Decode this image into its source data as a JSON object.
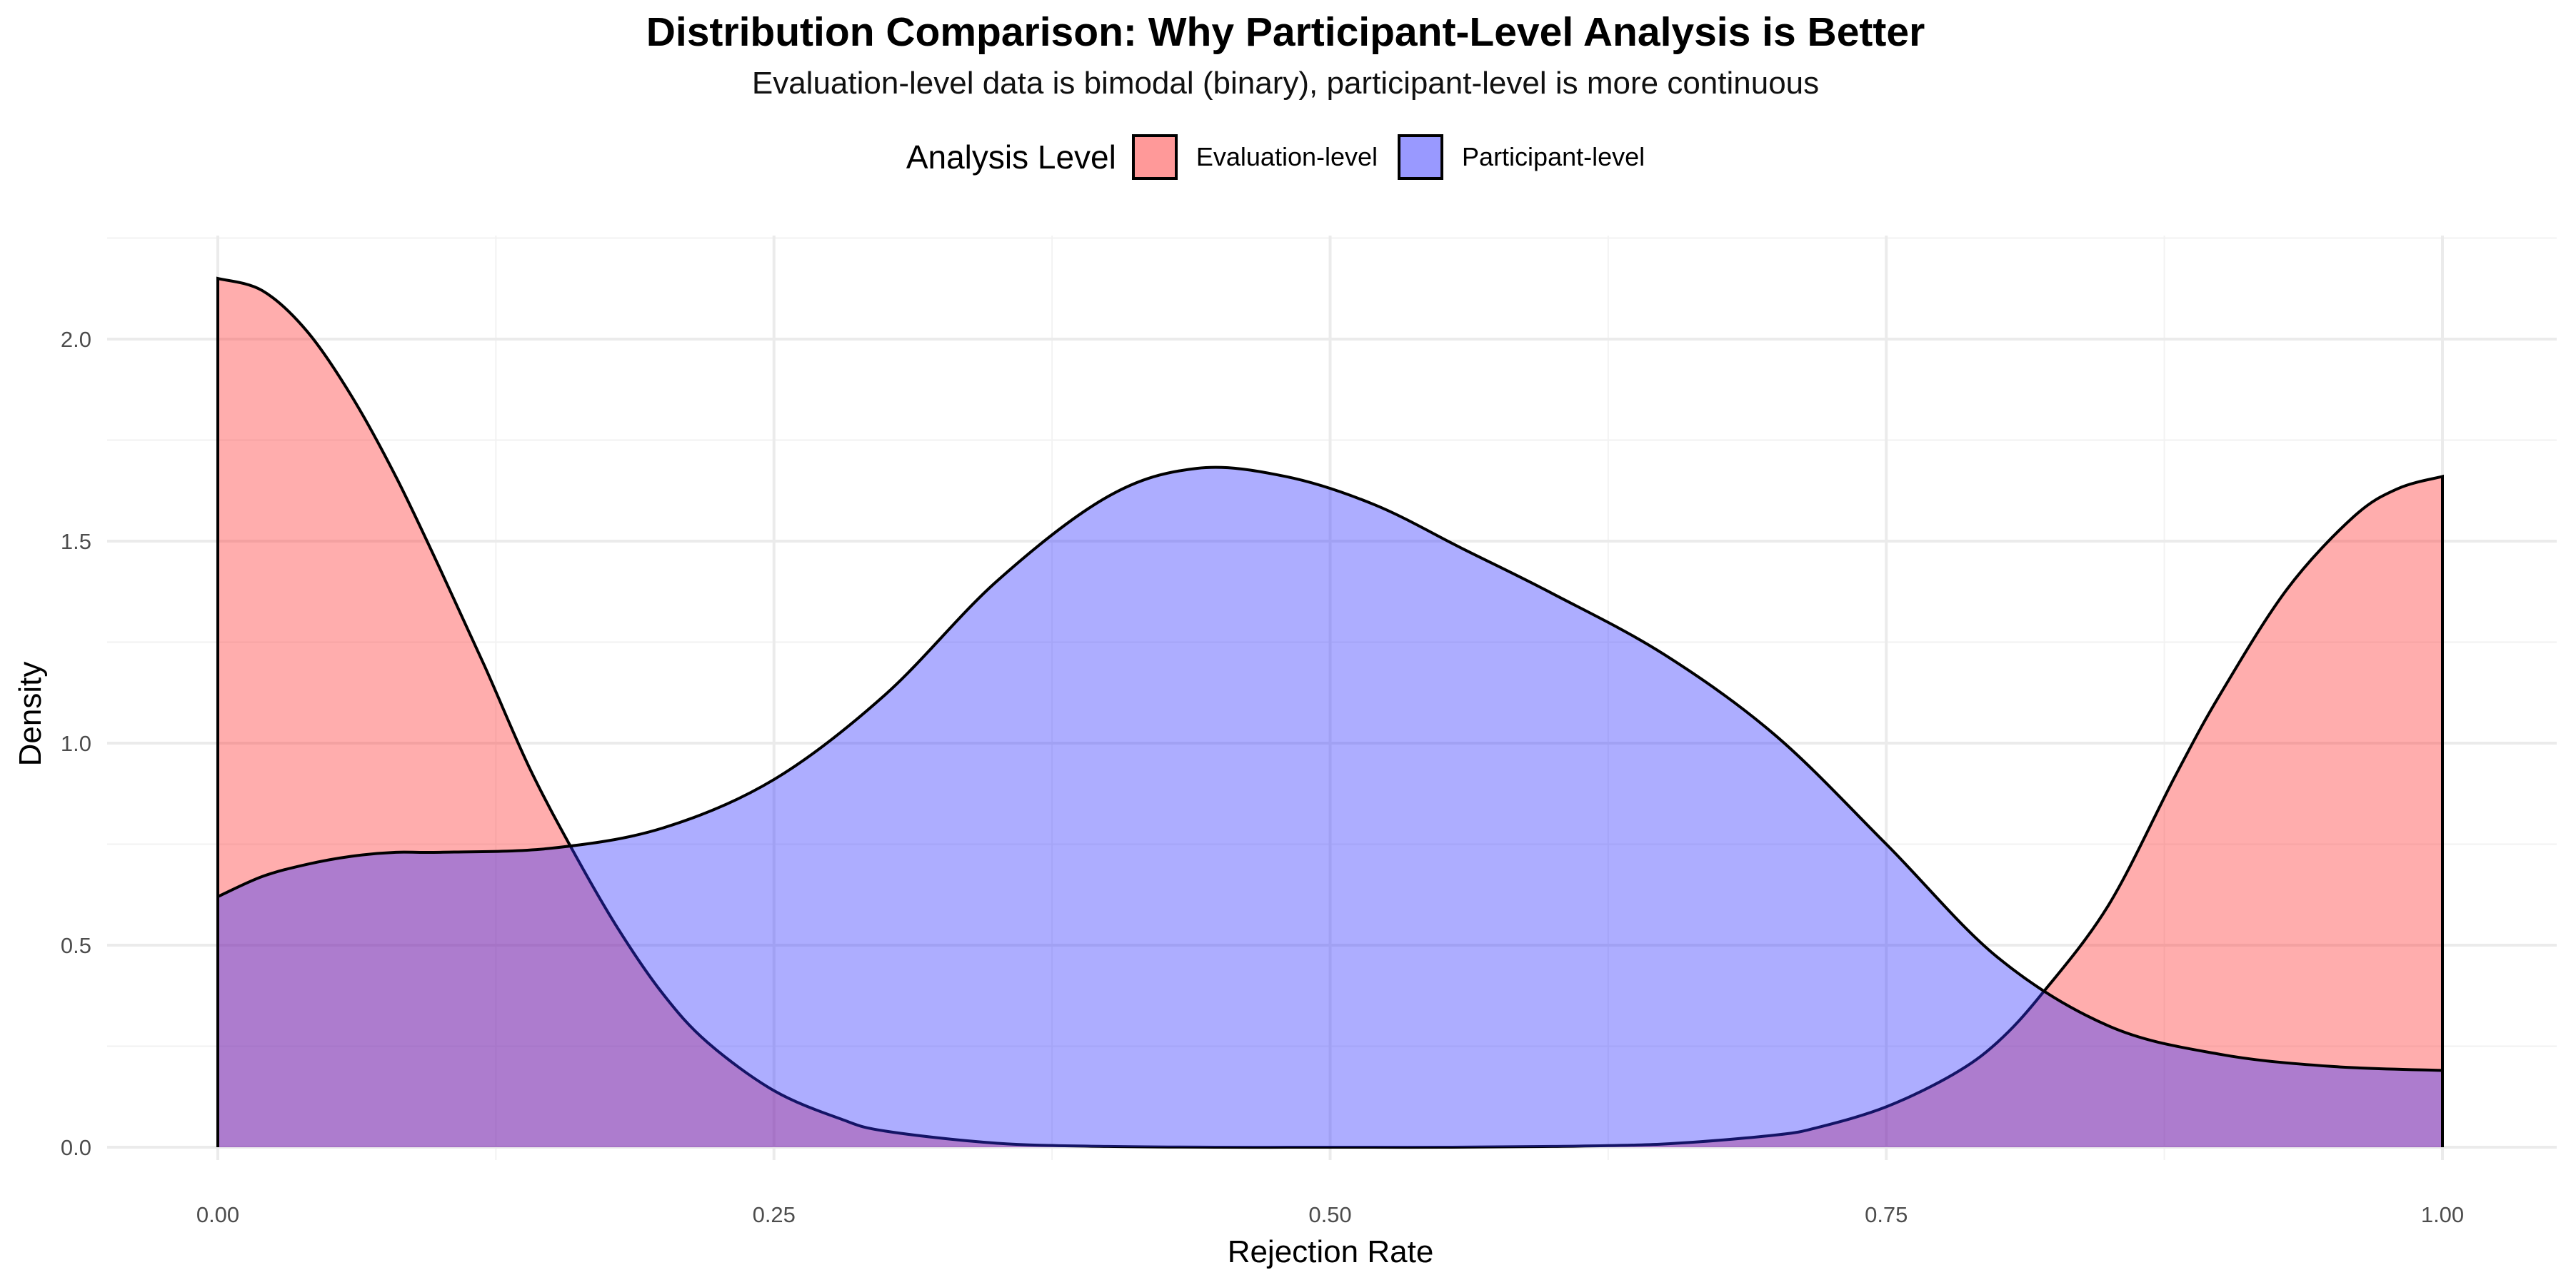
{
  "title": "Distribution Comparison: Why Participant-Level Analysis is Better",
  "subtitle": "Evaluation-level data is bimodal (binary), participant-level is more continuous",
  "legend": {
    "title": "Analysis Level",
    "items": [
      {
        "label": "Evaluation-level",
        "color": "#ff9999"
      },
      {
        "label": "Participant-level",
        "color": "#9999ff"
      }
    ]
  },
  "chart_data": {
    "type": "area",
    "title": "Distribution Comparison: Why Participant-Level Analysis is Better",
    "subtitle": "Evaluation-level data is bimodal (binary), participant-level is more continuous",
    "xlabel": "Rejection Rate",
    "ylabel": "Density",
    "xlim": [
      0,
      1
    ],
    "ylim": [
      0,
      2.15
    ],
    "xticks": [
      "0.00",
      "0.25",
      "0.50",
      "0.75",
      "1.00"
    ],
    "yticks": [
      "0.0",
      "0.5",
      "1.0",
      "1.5",
      "2.0"
    ],
    "grid": true,
    "legend_position": "top",
    "fill_opacity": 0.4,
    "overlap_color": "#9b59c0",
    "series": [
      {
        "name": "Evaluation-level",
        "color": "#ff3333",
        "x": [
          0.0,
          0.02,
          0.04,
          0.06,
          0.08,
          0.1,
          0.12,
          0.14,
          0.16,
          0.18,
          0.2,
          0.22,
          0.25,
          0.28,
          0.3,
          0.35,
          0.4,
          0.45,
          0.5,
          0.55,
          0.6,
          0.65,
          0.7,
          0.72,
          0.75,
          0.78,
          0.8,
          0.82,
          0.85,
          0.88,
          0.9,
          0.93,
          0.96,
          0.98,
          1.0
        ],
        "y": [
          2.15,
          2.12,
          2.02,
          1.86,
          1.66,
          1.43,
          1.19,
          0.94,
          0.73,
          0.54,
          0.38,
          0.26,
          0.14,
          0.07,
          0.04,
          0.01,
          0.002,
          0.0,
          0.0,
          0.0,
          0.002,
          0.008,
          0.03,
          0.05,
          0.1,
          0.18,
          0.26,
          0.38,
          0.6,
          0.92,
          1.12,
          1.38,
          1.56,
          1.63,
          1.66
        ]
      },
      {
        "name": "Participant-level",
        "color": "#3333ff",
        "x": [
          0.0,
          0.02,
          0.04,
          0.06,
          0.08,
          0.1,
          0.15,
          0.2,
          0.25,
          0.3,
          0.35,
          0.4,
          0.44,
          0.48,
          0.52,
          0.56,
          0.6,
          0.65,
          0.7,
          0.75,
          0.8,
          0.85,
          0.9,
          0.95,
          1.0
        ],
        "y": [
          0.62,
          0.67,
          0.7,
          0.72,
          0.73,
          0.73,
          0.74,
          0.79,
          0.91,
          1.12,
          1.4,
          1.61,
          1.68,
          1.66,
          1.59,
          1.48,
          1.37,
          1.22,
          1.02,
          0.75,
          0.47,
          0.3,
          0.23,
          0.2,
          0.19
        ]
      }
    ]
  }
}
